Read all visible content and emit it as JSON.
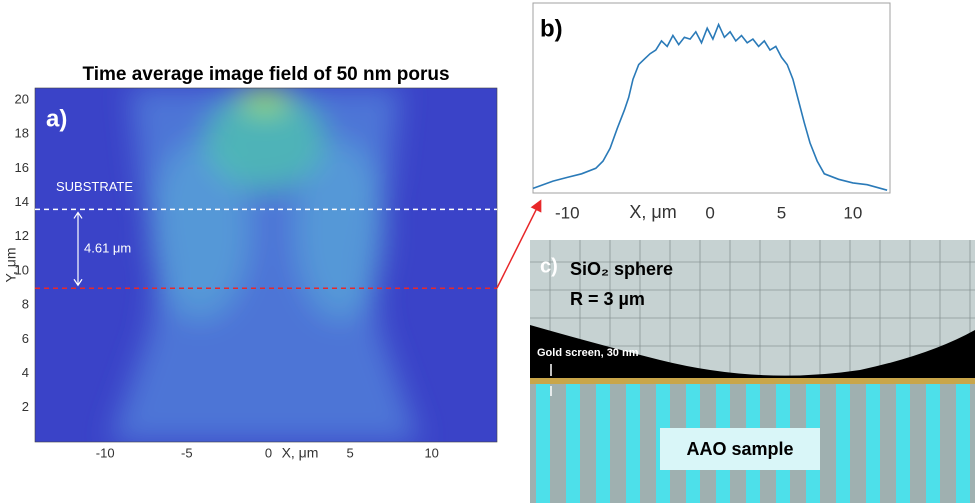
{
  "chart_data": [
    {
      "type": "heatmap",
      "title": "Time average image field of 50 nm porus",
      "label": "a)",
      "xlabel": "X, μm",
      "ylabel": "Y, μm",
      "xlim": [
        -14.3,
        14
      ],
      "ylim": [
        0,
        20.7
      ],
      "xticks": [
        -10,
        -5,
        0,
        5,
        10
      ],
      "yticks": [
        2,
        4,
        6,
        8,
        10,
        12,
        14,
        16,
        18,
        20
      ],
      "substrate_label": "SUBSTRATE",
      "gap_label": "4.61 μm",
      "lines": [
        {
          "y": 13.6,
          "color": "#ffffff"
        },
        {
          "y": 8.99,
          "color": "#e8282a"
        }
      ]
    },
    {
      "type": "line",
      "label": "b)",
      "xlabel": "X, μm",
      "color": "#2a7ab8",
      "xlim": [
        -12.4,
        12.6
      ],
      "ylim": [
        0,
        1
      ],
      "xticks": [
        -10,
        0,
        5,
        10
      ],
      "x": [
        -12.4,
        -11,
        -10,
        -9,
        -8,
        -7.5,
        -7,
        -6.5,
        -6,
        -5.7,
        -5.4,
        -5,
        -4.6,
        -4.2,
        -3.8,
        -3.4,
        -3,
        -2.6,
        -2.2,
        -1.8,
        -1.4,
        -1,
        -0.6,
        -0.2,
        0.2,
        0.6,
        1,
        1.4,
        1.8,
        2.2,
        2.6,
        3,
        3.4,
        3.8,
        4.2,
        4.6,
        5,
        5.4,
        5.8,
        6.2,
        6.6,
        7,
        7.5,
        8,
        9,
        10,
        11,
        12.4
      ],
      "values": [
        0.02,
        0.06,
        0.08,
        0.1,
        0.13,
        0.17,
        0.24,
        0.35,
        0.45,
        0.52,
        0.62,
        0.7,
        0.73,
        0.76,
        0.78,
        0.83,
        0.8,
        0.86,
        0.81,
        0.85,
        0.84,
        0.88,
        0.82,
        0.9,
        0.84,
        0.92,
        0.85,
        0.88,
        0.83,
        0.86,
        0.82,
        0.84,
        0.8,
        0.83,
        0.78,
        0.8,
        0.74,
        0.7,
        0.62,
        0.5,
        0.38,
        0.27,
        0.17,
        0.1,
        0.07,
        0.05,
        0.04,
        0.01
      ]
    }
  ],
  "diagram": {
    "label": "c)",
    "sphere": "SiO₂ sphere",
    "radius": "R = 3 µm",
    "screen": "Gold screen, 30 nm",
    "sample": "AAO sample"
  }
}
